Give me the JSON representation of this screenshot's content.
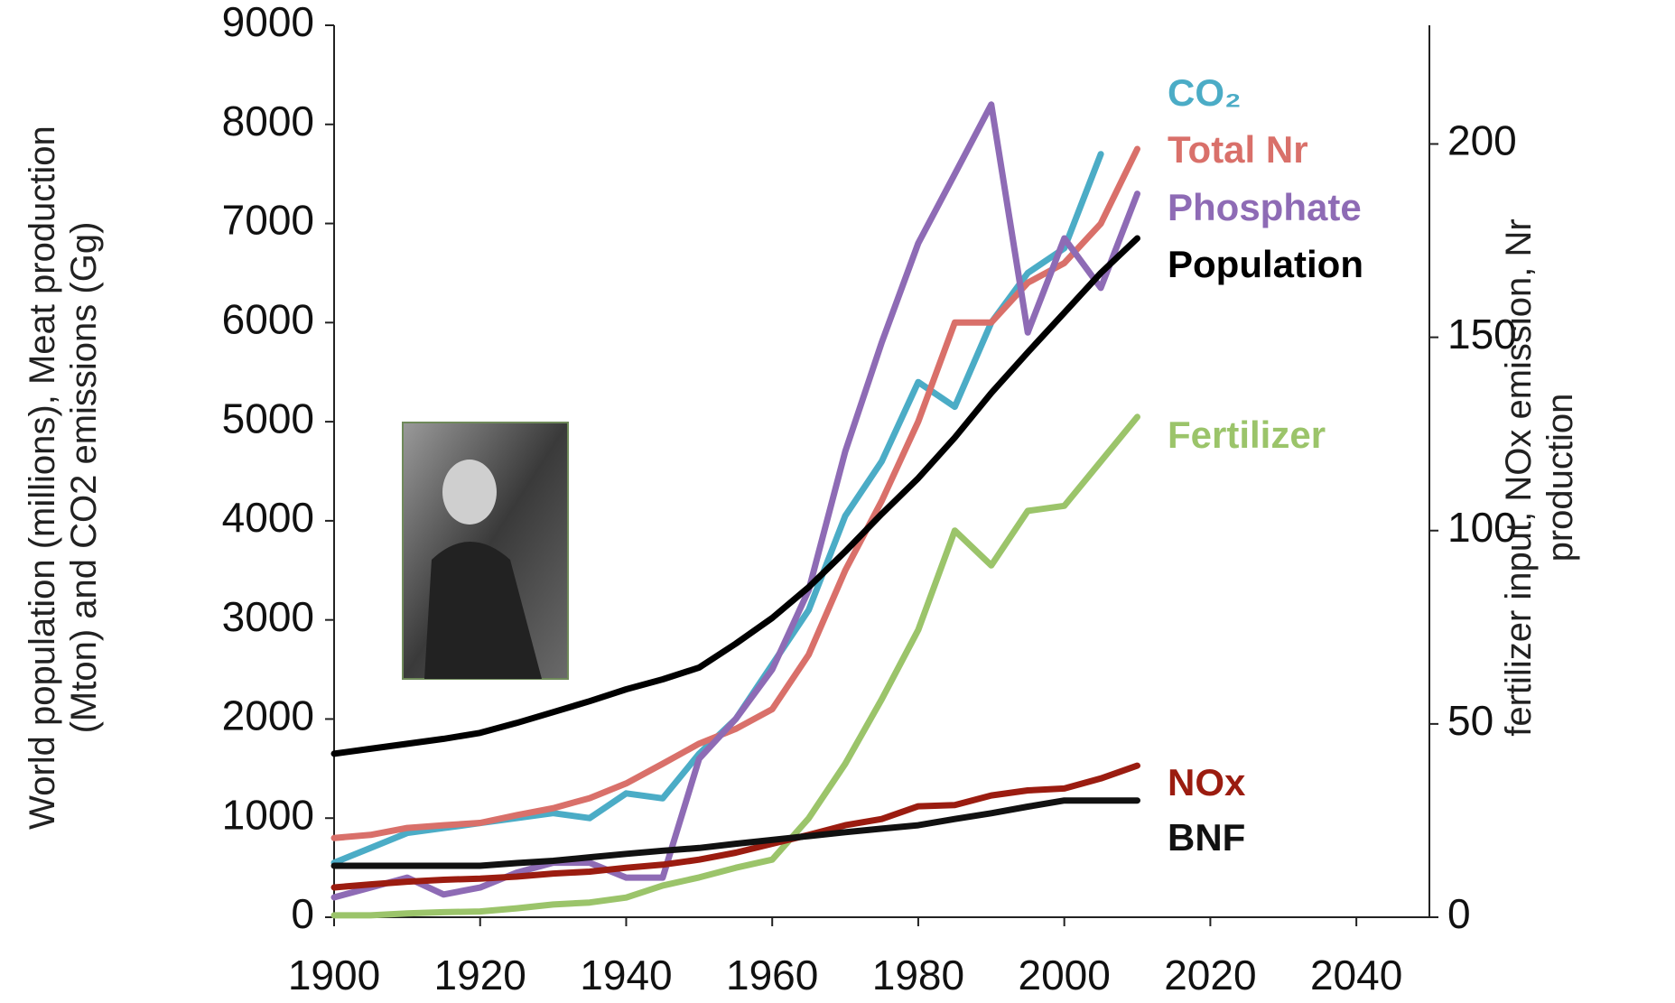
{
  "chart_data": {
    "type": "line",
    "y_label": "World population (millions), Meat production (Mton) and CO2 emissions (Gg)",
    "y2_label": "fertilizer input, NOx emission, Nr production",
    "x": [
      1900,
      1905,
      1910,
      1915,
      1920,
      1925,
      1930,
      1935,
      1940,
      1945,
      1950,
      1955,
      1960,
      1965,
      1970,
      1975,
      1980,
      1985,
      1990,
      1995,
      2000,
      2005,
      2010
    ],
    "xlim": [
      1900,
      2050
    ],
    "xticks": [
      1900,
      1920,
      1940,
      1960,
      1980,
      2000,
      2020,
      2040
    ],
    "ylim": [
      0,
      9000
    ],
    "yticks": [
      0,
      1000,
      2000,
      3000,
      4000,
      5000,
      6000,
      7000,
      8000,
      9000
    ],
    "y2lim": [
      0,
      230.7
    ],
    "y2ticks": [
      0,
      50,
      100,
      150,
      200
    ],
    "grid": false,
    "series": [
      {
        "name": "CO₂",
        "color": "#4bacc6",
        "values": [
          550,
          700,
          850,
          900,
          950,
          1000,
          1050,
          1000,
          1250,
          1200,
          1650,
          2000,
          2550,
          3100,
          4050,
          4600,
          5400,
          5150,
          6000,
          6500,
          6750,
          7700,
          null
        ]
      },
      {
        "name": "Total Nr",
        "color": "#d9706a",
        "axis": "y2",
        "values": [
          20.5,
          21.3,
          23.1,
          23.8,
          24.4,
          26.4,
          28.2,
          30.8,
          34.6,
          39.7,
          44.9,
          48.7,
          53.8,
          67.9,
          89.7,
          107.7,
          128.2,
          153.8,
          153.8,
          164.1,
          169.2,
          179.4,
          198.7
        ]
      },
      {
        "name": "Phosphate",
        "color": "#8e6bb5",
        "values": [
          200,
          300,
          400,
          230,
          300,
          450,
          550,
          550,
          400,
          400,
          1600,
          2000,
          2500,
          3300,
          4700,
          5800,
          6800,
          7500,
          8200,
          5900,
          6850,
          6350,
          7300
        ]
      },
      {
        "name": "Population",
        "color": "#000000",
        "values": [
          1650,
          1700,
          1750,
          1800,
          1860,
          1960,
          2070,
          2180,
          2300,
          2400,
          2520,
          2760,
          3020,
          3330,
          3690,
          4070,
          4430,
          4840,
          5290,
          5700,
          6100,
          6500,
          6850
        ]
      },
      {
        "name": "Fertilizer",
        "color": "#9bc46a",
        "axis": "y2",
        "values": [
          0.5,
          0.5,
          1,
          1.3,
          1.5,
          2.3,
          3.3,
          3.8,
          5.1,
          8.2,
          10.3,
          12.8,
          14.9,
          25.6,
          39.7,
          56.4,
          74.3,
          100,
          91,
          105.1,
          106.4,
          117.9,
          129.4
        ]
      },
      {
        "name": "NOx",
        "color": "#9b1c10",
        "axis": "y2",
        "values": [
          7.7,
          8.5,
          9.2,
          9.7,
          10,
          10.5,
          11.3,
          11.8,
          12.8,
          13.6,
          14.9,
          16.7,
          19,
          21.3,
          23.8,
          25.4,
          28.7,
          29,
          31.5,
          32.8,
          33.3,
          35.9,
          39.2
        ]
      },
      {
        "name": "BNF",
        "color": "#111111",
        "axis": "y2",
        "values": [
          13.3,
          13.3,
          13.3,
          13.3,
          13.3,
          14,
          14.6,
          15.5,
          16.4,
          17.2,
          17.9,
          19,
          20,
          21,
          22,
          22.9,
          23.8,
          25.4,
          26.9,
          28.6,
          30.2,
          30.2,
          30.2
        ]
      }
    ]
  }
}
